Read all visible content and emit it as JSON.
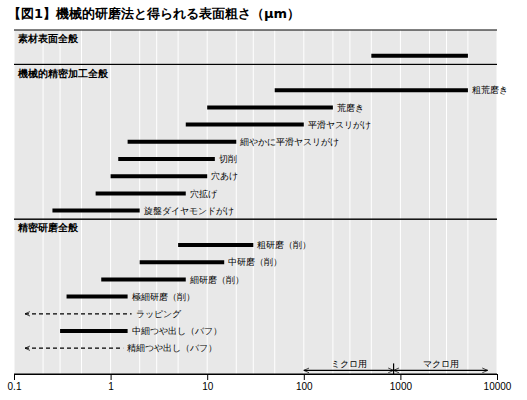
{
  "chart_data": {
    "type": "bar",
    "orientation": "horizontal",
    "title": "【図1】機械的研磨法と得られる表面粗さ（μm）",
    "log": "x",
    "xlim": [
      0.1,
      10000
    ],
    "xticks": [
      0.1,
      1,
      10,
      100,
      1000,
      10000
    ],
    "grid": true,
    "grid_lines": [
      0.1,
      0.2,
      0.3,
      0.5,
      1,
      2,
      3,
      5,
      10,
      20,
      30,
      50,
      100,
      200,
      300,
      500,
      1000,
      2000,
      3000,
      5000,
      10000
    ],
    "background_color": "#e8e8e8",
    "color": "#000000",
    "sections": [
      {
        "label": "素材表面全般",
        "categories": [
          null
        ],
        "values": [
          [
            500,
            5000
          ]
        ],
        "line_styles": [
          "solid"
        ]
      },
      {
        "label": "機械的精密加工全般",
        "categories": [
          "粗荒磨き",
          "荒磨き",
          "平滑ヤスリがけ",
          "細やかに平滑ヤスリがけ",
          "切削",
          "穴あけ",
          "穴拡げ",
          "旋盤ダイヤモンドがけ"
        ],
        "values": [
          [
            50,
            5000
          ],
          [
            10,
            200
          ],
          [
            6,
            100
          ],
          [
            1.5,
            20
          ],
          [
            1.2,
            12
          ],
          [
            1.0,
            10
          ],
          [
            0.7,
            6
          ],
          [
            0.25,
            2
          ]
        ],
        "line_styles": [
          "solid",
          "solid",
          "solid",
          "solid",
          "solid",
          "solid",
          "solid",
          "solid"
        ]
      },
      {
        "label": "精密研磨全般",
        "categories": [
          "粗研磨（削）",
          "中研磨（削）",
          "細研磨（削）",
          "極細研磨（削）",
          "ラッピング",
          "中細つや出し（バフ）",
          "精細つや出し（バフ）"
        ],
        "values": [
          [
            5,
            30
          ],
          [
            2,
            15
          ],
          [
            0.8,
            6
          ],
          [
            0.35,
            1.5
          ],
          [
            0.13,
            1.65
          ],
          [
            0.3,
            1.5
          ],
          [
            0.13,
            1.35
          ]
        ],
        "line_styles": [
          "solid",
          "solid",
          "solid",
          "solid",
          "dashed",
          "solid",
          "dashed"
        ]
      }
    ],
    "annotations": [
      {
        "text": "ミクロ用",
        "x": [
          100,
          850
        ]
      },
      {
        "text": "マクロ用",
        "x": [
          850,
          8000
        ]
      }
    ],
    "divider": 850
  }
}
